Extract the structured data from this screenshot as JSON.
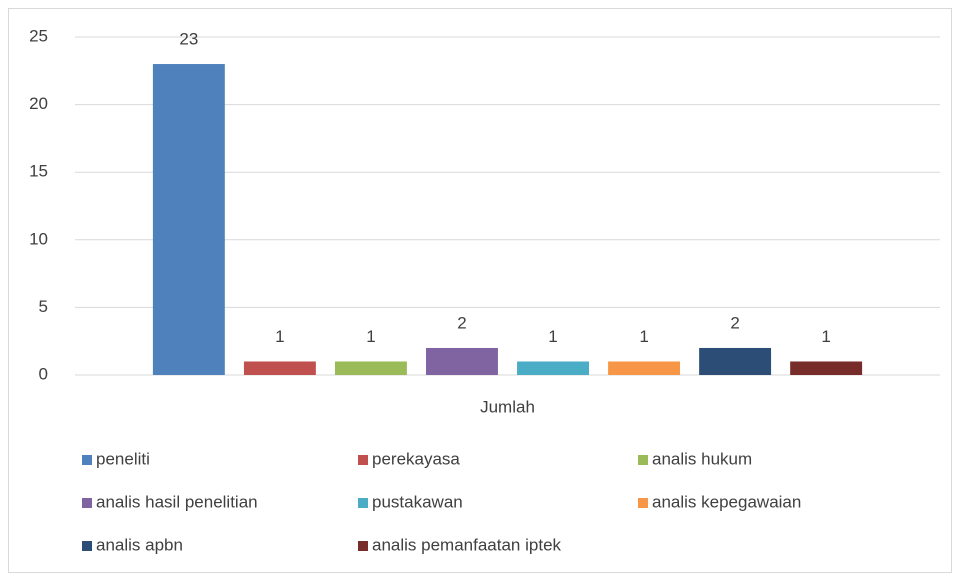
{
  "chart_data": {
    "type": "bar",
    "categories": [
      "Jumlah"
    ],
    "series": [
      {
        "name": "peneliti",
        "color": "#4f81bd",
        "values": [
          23
        ]
      },
      {
        "name": "perekayasa",
        "color": "#c0504d",
        "values": [
          1
        ]
      },
      {
        "name": "analis hukum",
        "color": "#9bbb59",
        "values": [
          1
        ]
      },
      {
        "name": "analis hasil penelitian",
        "color": "#8064a2",
        "values": [
          2
        ]
      },
      {
        "name": "pustakawan",
        "color": "#4bacc6",
        "values": [
          1
        ]
      },
      {
        "name": "analis kepegawaian",
        "color": "#f79646",
        "values": [
          1
        ]
      },
      {
        "name": "analis apbn",
        "color": "#2c4d75",
        "values": [
          2
        ]
      },
      {
        "name": "analis pemanfaatan iptek",
        "color": "#772c2a",
        "values": [
          1
        ]
      }
    ],
    "ylim": [
      0,
      25
    ],
    "yticks": [
      0,
      5,
      10,
      15,
      20,
      25
    ],
    "grid": true,
    "legend": "bottom"
  }
}
